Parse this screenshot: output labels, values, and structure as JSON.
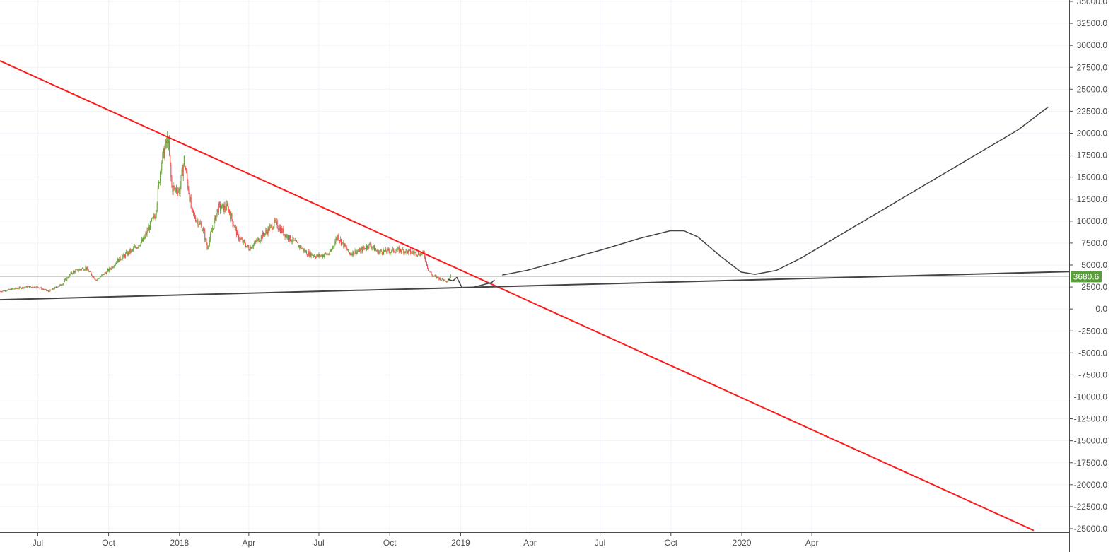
{
  "chart_data": {
    "type": "candlestick",
    "title": "",
    "xlim": [
      "2017-05-13",
      "2021-03-01"
    ],
    "ylim": [
      -25000,
      35000
    ],
    "grid": true,
    "y_ticks": [
      "35000.0",
      "32500.0",
      "30000.0",
      "27500.0",
      "25000.0",
      "22500.0",
      "20000.0",
      "17500.0",
      "15000.0",
      "12500.0",
      "10000.0",
      "7500.0",
      "5000.0",
      "2500.0",
      "0.0",
      "-2500.0",
      "-5000.0",
      "-7500.0",
      "-10000.0",
      "-12500.0",
      "-15000.0",
      "-17500.0",
      "-20000.0",
      "-22500.0",
      "-25000.0"
    ],
    "x_ticks": [
      {
        "label": "Jul",
        "date": "2017-07-01"
      },
      {
        "label": "Oct",
        "date": "2017-10-01"
      },
      {
        "label": "2018",
        "date": "2018-01-01"
      },
      {
        "label": "Apr",
        "date": "2018-04-01"
      },
      {
        "label": "Jul",
        "date": "2018-07-01"
      },
      {
        "label": "Oct",
        "date": "2018-10-01"
      },
      {
        "label": "2019",
        "date": "2019-01-01"
      },
      {
        "label": "Apr",
        "date": "2019-04-01"
      },
      {
        "label": "Jul",
        "date": "2019-07-01"
      },
      {
        "label": "Oct",
        "date": "2019-10-01"
      },
      {
        "label": "2020",
        "date": "2020-01-01"
      },
      {
        "label": "Apr",
        "date": "2020-04-01"
      }
    ],
    "price_path": [
      [
        "2017-05-13",
        2000
      ],
      [
        "2017-06-01",
        2300
      ],
      [
        "2017-06-15",
        2500
      ],
      [
        "2017-07-01",
        2500
      ],
      [
        "2017-07-15",
        2000
      ],
      [
        "2017-08-01",
        2800
      ],
      [
        "2017-08-15",
        4200
      ],
      [
        "2017-09-01",
        4700
      ],
      [
        "2017-09-15",
        3300
      ],
      [
        "2017-10-01",
        4400
      ],
      [
        "2017-10-15",
        5700
      ],
      [
        "2017-11-01",
        6700
      ],
      [
        "2017-11-15",
        7800
      ],
      [
        "2017-12-01",
        10900
      ],
      [
        "2017-12-08",
        16500
      ],
      [
        "2017-12-17",
        19500
      ],
      [
        "2017-12-22",
        13800
      ],
      [
        "2018-01-01",
        13500
      ],
      [
        "2018-01-07",
        17000
      ],
      [
        "2018-01-17",
        11000
      ],
      [
        "2018-02-01",
        9000
      ],
      [
        "2018-02-06",
        6900
      ],
      [
        "2018-02-20",
        11500
      ],
      [
        "2018-03-05",
        11500
      ],
      [
        "2018-03-18",
        8200
      ],
      [
        "2018-04-01",
        6900
      ],
      [
        "2018-04-15",
        8000
      ],
      [
        "2018-05-05",
        9800
      ],
      [
        "2018-05-20",
        8300
      ],
      [
        "2018-06-01",
        7500
      ],
      [
        "2018-06-15",
        6400
      ],
      [
        "2018-06-29",
        6000
      ],
      [
        "2018-07-15",
        6300
      ],
      [
        "2018-07-25",
        8300
      ],
      [
        "2018-08-10",
        6300
      ],
      [
        "2018-08-25",
        6700
      ],
      [
        "2018-09-05",
        7300
      ],
      [
        "2018-09-15",
        6500
      ],
      [
        "2018-10-01",
        6600
      ],
      [
        "2018-10-15",
        6700
      ],
      [
        "2018-11-01",
        6400
      ],
      [
        "2018-11-14",
        6300
      ],
      [
        "2018-11-20",
        4500
      ],
      [
        "2018-11-25",
        3800
      ],
      [
        "2018-12-07",
        3400
      ],
      [
        "2018-12-15",
        3200
      ],
      [
        "2018-12-20",
        3900
      ]
    ],
    "last_price": {
      "label": "3680.6",
      "value": 3680.6,
      "color": "#5b9f3c"
    },
    "trendlines": [
      {
        "color": "#ff1a1a",
        "points": [
          [
            "2017-05-13",
            28240
          ],
          [
            "2021-01-14",
            -25200
          ]
        ]
      },
      {
        "color": "#444444",
        "points": [
          [
            "2017-05-13",
            1050
          ],
          [
            "2021-03-01",
            4260
          ]
        ]
      }
    ],
    "projection_paths": [
      {
        "color": "#444444",
        "points": [
          [
            "2018-12-15",
            3400
          ],
          [
            "2018-12-22",
            3200
          ],
          [
            "2018-12-27",
            3600
          ],
          [
            "2019-01-03",
            2400
          ],
          [
            "2019-01-14",
            2400
          ],
          [
            "2019-02-10",
            3000
          ],
          [
            "2019-02-14",
            3300
          ]
        ]
      },
      {
        "color": "#444444",
        "points": [
          [
            "2019-02-24",
            3860
          ],
          [
            "2019-03-28",
            4400
          ],
          [
            "2019-05-13",
            5500
          ],
          [
            "2019-07-06",
            6800
          ],
          [
            "2019-08-20",
            8000
          ],
          [
            "2019-09-30",
            8900
          ],
          [
            "2019-10-18",
            8900
          ],
          [
            "2019-11-05",
            8200
          ],
          [
            "2019-12-03",
            6100
          ],
          [
            "2019-12-31",
            4200
          ],
          [
            "2020-01-18",
            3950
          ],
          [
            "2020-02-15",
            4400
          ],
          [
            "2020-03-18",
            5800
          ],
          [
            "2020-12-25",
            20400
          ],
          [
            "2021-02-02",
            23000
          ]
        ]
      }
    ],
    "colors": {
      "up": "#6ba539",
      "down": "#ef4b4b",
      "grid": "#f0f3fa",
      "axis": "#4a4a4a"
    }
  }
}
